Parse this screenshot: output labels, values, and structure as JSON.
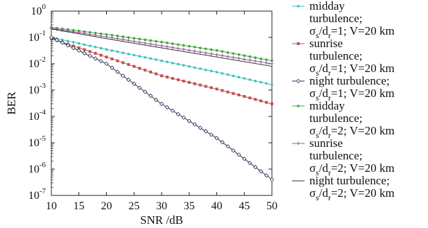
{
  "chart_data": {
    "type": "line",
    "xlabel": "SNR /dB",
    "ylabel": "BER",
    "xlim": [
      10,
      50
    ],
    "ylim": [
      1e-07,
      1
    ],
    "yscale": "log",
    "x_ticks": [
      "10",
      "15",
      "20",
      "25",
      "30",
      "35",
      "40",
      "45",
      "50"
    ],
    "y_ticks": [
      {
        "base": "10",
        "exp": "0"
      },
      {
        "base": "10",
        "exp": "-1"
      },
      {
        "base": "10",
        "exp": "-2"
      },
      {
        "base": "10",
        "exp": "-3"
      },
      {
        "base": "10",
        "exp": "-4"
      },
      {
        "base": "10",
        "exp": "-5"
      },
      {
        "base": "10",
        "exp": "-6"
      },
      {
        "base": "10",
        "exp": "-7"
      }
    ],
    "grid": false,
    "legend_position": "right",
    "series": [
      {
        "lines": [
          "midday",
          "turbulence;",
          "σs/dr=1; V=20 km"
        ],
        "color": "#3cbcbc",
        "marker": "circle",
        "x": [
          10,
          20,
          30,
          40,
          50
        ],
        "y": [
          0.1,
          0.035,
          0.013,
          0.0048,
          0.0016
        ]
      },
      {
        "lines": [
          "sunrise",
          "turbulence;",
          "σs/dr=1; V=20 km"
        ],
        "color": "#c0504d",
        "marker": "square",
        "x": [
          10,
          20,
          30,
          40,
          50
        ],
        "y": [
          0.09,
          0.018,
          0.0035,
          0.0011,
          0.0003
        ]
      },
      {
        "lines": [
          "night turbulence;",
          "σs/dr=1; V=20 km"
        ],
        "color": "#2a2a55",
        "marker": "diamond",
        "x": [
          10,
          20,
          30,
          40,
          50
        ],
        "y": [
          0.1,
          0.01,
          0.0003,
          1.5e-05,
          4e-07
        ]
      },
      {
        "lines": [
          "midday",
          "turbulence;",
          "σs/dr=2; V=20 km"
        ],
        "color": "#3aa83a",
        "marker": "circle",
        "x": [
          10,
          20,
          30,
          40,
          50
        ],
        "y": [
          0.24,
          0.13,
          0.067,
          0.032,
          0.013
        ]
      },
      {
        "lines": [
          "sunrise",
          "turbulence;",
          "σs/dr=2; V=20 km"
        ],
        "color": "#9b4f9b",
        "marker": "plus",
        "x": [
          10,
          20,
          30,
          40,
          50
        ],
        "y": [
          0.22,
          0.105,
          0.048,
          0.022,
          0.01
        ]
      },
      {
        "lines": [
          "night turbulence;",
          "σs/dr=2; V=20 km"
        ],
        "color": "#333333",
        "marker": "none",
        "x": [
          10,
          20,
          30,
          40,
          50
        ],
        "y": [
          0.21,
          0.09,
          0.04,
          0.018,
          0.008
        ]
      }
    ]
  }
}
